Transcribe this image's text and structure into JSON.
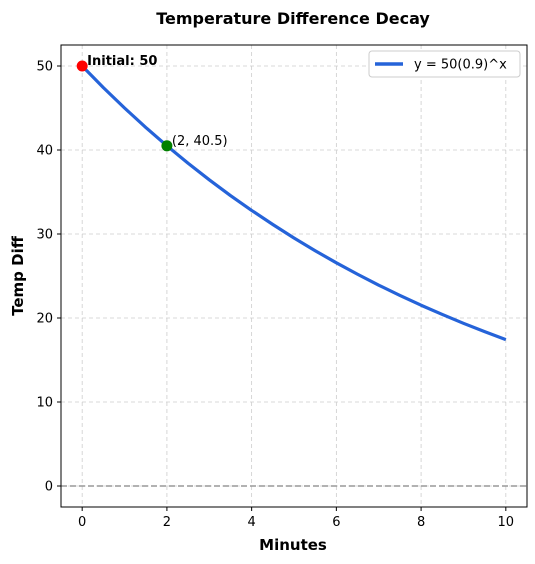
{
  "chart_data": {
    "type": "line",
    "title": "Temperature Difference Decay",
    "xlabel": "Minutes",
    "ylabel": "Temp Diff",
    "xlim": [
      -0.5,
      10.5
    ],
    "ylim": [
      -2.5,
      52.5
    ],
    "xticks": [
      0,
      2,
      4,
      6,
      8,
      10
    ],
    "yticks": [
      0,
      10,
      20,
      30,
      40,
      50
    ],
    "grid": true,
    "legend_position": "top-right",
    "series": [
      {
        "name": "y = 50(0.9)^x",
        "color": "#2563d9",
        "x": [
          0,
          0.5,
          1,
          1.5,
          2,
          2.5,
          3,
          3.5,
          4,
          4.5,
          5,
          5.5,
          6,
          6.5,
          7,
          7.5,
          8,
          8.5,
          9,
          9.5,
          10
        ],
        "y": [
          50,
          47.43,
          45,
          42.69,
          40.5,
          38.42,
          36.45,
          34.58,
          32.81,
          31.13,
          29.52,
          28.01,
          26.57,
          25.21,
          23.91,
          22.69,
          21.52,
          20.42,
          19.37,
          18.38,
          17.43
        ]
      }
    ],
    "reference_line": {
      "y": 0,
      "color": "#999999"
    },
    "points": [
      {
        "x": 0,
        "y": 50,
        "color": "#ff0000",
        "label": "Initial: 50",
        "bold": true
      },
      {
        "x": 2,
        "y": 40.5,
        "color": "#008000",
        "label": "(2, 40.5)",
        "bold": false
      }
    ]
  }
}
